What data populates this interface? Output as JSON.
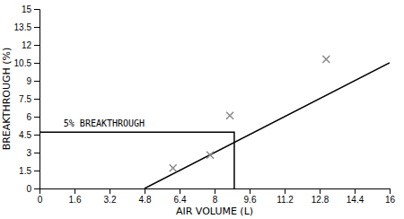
{
  "chart_data": {
    "type": "scatter",
    "xlabel": "AIR VOLUME (L)",
    "ylabel": "BREAKTHROUGH (%)",
    "xlim": [
      0.0,
      16.0
    ],
    "ylim": [
      0.0,
      15.0
    ],
    "xticks": [
      0.0,
      1.6,
      3.2,
      4.8,
      6.4,
      8.0,
      9.6,
      11.2,
      12.8,
      14.4,
      16.0
    ],
    "yticks": [
      0.0,
      1.5,
      3.0,
      4.5,
      6.0,
      7.5,
      9.0,
      10.5,
      12.0,
      13.5,
      15.0
    ],
    "series": [
      {
        "type": "line",
        "color": "#000000",
        "line_style": "solid",
        "x": [
          4.8,
          16.0
        ],
        "values": [
          0.0,
          10.5
        ]
      },
      {
        "type": "scatter",
        "color": "#888888",
        "marker": "x",
        "x": [
          6.1,
          7.8,
          8.7,
          13.1
        ],
        "values": [
          1.7,
          2.8,
          6.1,
          10.8
        ]
      },
      {
        "type": "line",
        "color": "#000000",
        "line_style": "solid",
        "x": [
          0.0,
          8.9,
          8.9
        ],
        "values": [
          4.7,
          4.7,
          0.0
        ]
      }
    ],
    "annotations": [
      {
        "text": "5% BREAKTHROUGH",
        "x": 1.1,
        "y": 5.15
      }
    ]
  }
}
